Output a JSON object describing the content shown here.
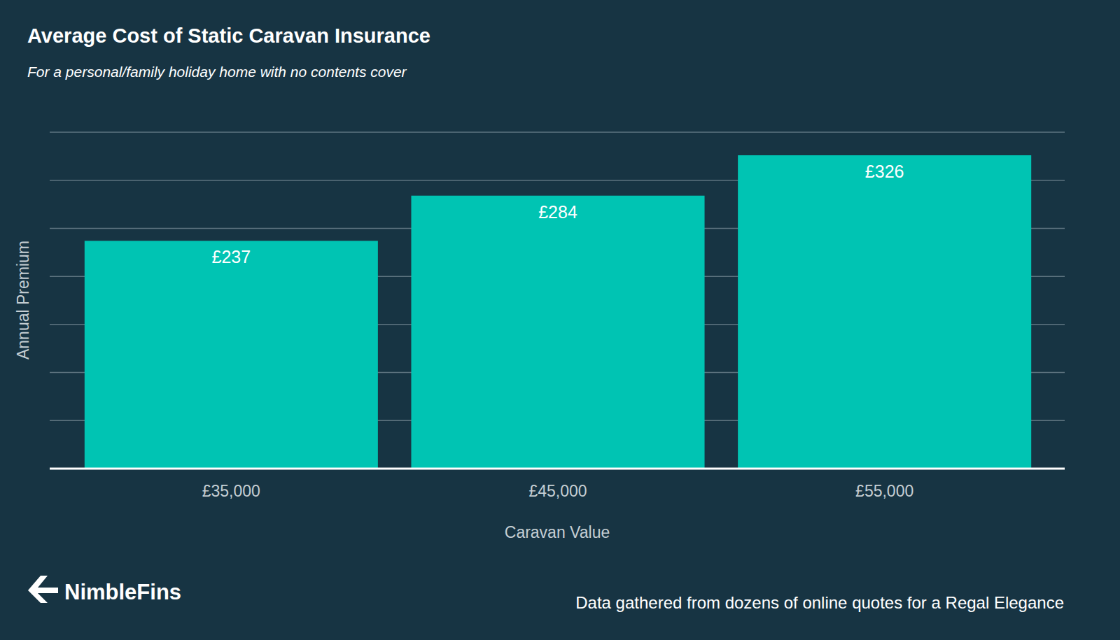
{
  "chart_data": {
    "type": "bar",
    "title": "Average Cost of Static Caravan Insurance",
    "subtitle": "For a personal/family holiday home with no contents cover",
    "x_label": "Caravan Value",
    "y_label": "Annual Premium",
    "categories": [
      "£35,000",
      "£45,000",
      "£55,000"
    ],
    "values": [
      237,
      284,
      326
    ],
    "value_labels": [
      "£237",
      "£284",
      "£326"
    ],
    "color": "#00c4b3",
    "ylim": [
      0,
      350
    ],
    "yticks": [
      0,
      50,
      100,
      150,
      200,
      250,
      300,
      350
    ],
    "grid": true,
    "data_labels": true,
    "tick_labels": "x",
    "brand": "NimbleFins",
    "source": "Data gathered from dozens of online quotes for a Regal Elegance"
  }
}
